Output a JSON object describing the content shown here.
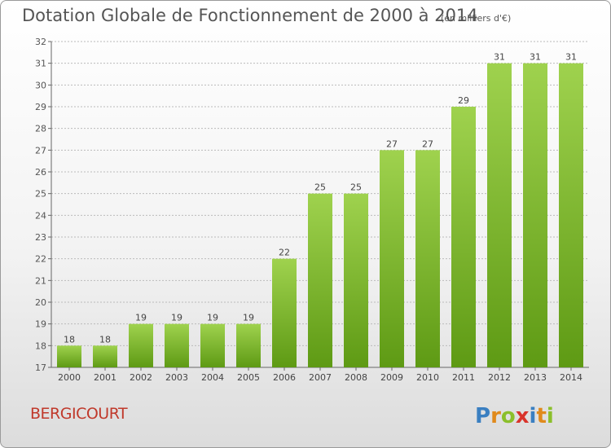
{
  "header": {
    "title": "Dotation Globale de Fonctionnement de 2000 à 2014",
    "subtitle": "(en milliers d'€)"
  },
  "footer": {
    "commune": "BERGICOURT",
    "logo_text": "Proxiti"
  },
  "colors": {
    "bar_top": "#9fd24e",
    "bar_bottom": "#5e9a14",
    "grid": "#bbbbbb",
    "commune": "#c0392b"
  },
  "chart_data": {
    "type": "bar",
    "categories": [
      "2000",
      "2001",
      "2002",
      "2003",
      "2004",
      "2005",
      "2006",
      "2007",
      "2008",
      "2009",
      "2010",
      "2011",
      "2012",
      "2013",
      "2014"
    ],
    "values": [
      18,
      18,
      19,
      19,
      19,
      19,
      22,
      25,
      25,
      27,
      27,
      29,
      31,
      31,
      31
    ],
    "ylim": [
      17,
      32
    ],
    "yticks": [
      17,
      18,
      19,
      20,
      21,
      22,
      23,
      24,
      25,
      26,
      27,
      28,
      29,
      30,
      31,
      32
    ],
    "data_labels": true,
    "grid": "horizontal"
  }
}
